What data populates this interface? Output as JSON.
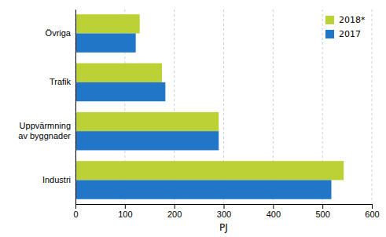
{
  "chart_data": {
    "type": "bar",
    "orientation": "horizontal",
    "categories": [
      "Industri",
      "Uppvärmning\nav byggnader",
      "Trafik",
      "Övriga"
    ],
    "series": [
      {
        "name": "2018*",
        "color": "#bcd135",
        "values": [
          543,
          290,
          175,
          130
        ]
      },
      {
        "name": "2017",
        "color": "#2176c8",
        "values": [
          518,
          290,
          182,
          122
        ]
      }
    ],
    "xlabel": "PJ",
    "xlim": [
      0,
      600
    ],
    "xticks": [
      0,
      100,
      200,
      300,
      400,
      500,
      600
    ],
    "grid": true,
    "legend": "upper right"
  }
}
